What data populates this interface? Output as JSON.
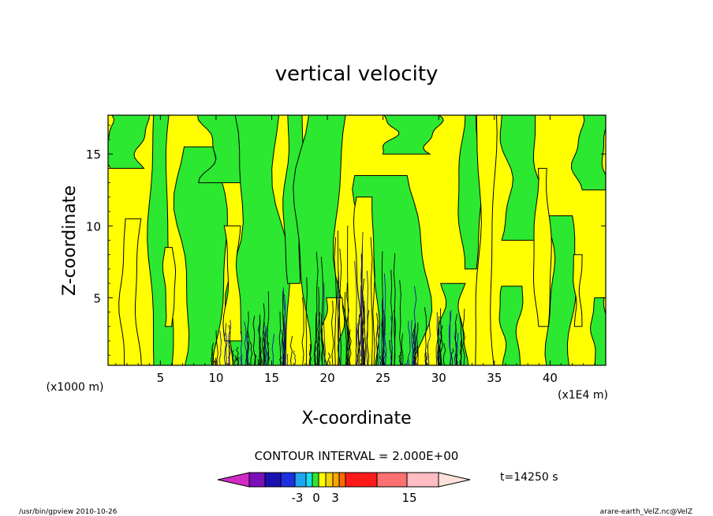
{
  "chart_data": {
    "type": "heatmap",
    "title": "vertical velocity",
    "xlabel": "X-coordinate",
    "ylabel": "Z-coordinate",
    "x_units_left": "(x1000 m)",
    "x_units_right": "(x1E4 m)",
    "x_ticks": [
      "5",
      "10",
      "15",
      "20",
      "25",
      "30",
      "35",
      "40"
    ],
    "x_tick_values": [
      5,
      10,
      15,
      20,
      25,
      30,
      35,
      40
    ],
    "y_ticks": [
      "5",
      "10",
      "15"
    ],
    "y_tick_values": [
      5,
      10,
      15
    ],
    "xlim": [
      0.3,
      45
    ],
    "ylim": [
      0.3,
      17.7
    ],
    "contour_interval": "CONTOUR INTERVAL = 2.000E+00",
    "time_label": "t=14250 s",
    "colorbar": {
      "colors": [
        "#d02bc6",
        "#7b10b8",
        "#1a12b0",
        "#1d2fe0",
        "#1fa5f2",
        "#17e0f0",
        "#2ce830",
        "#ffff00",
        "#f5d10c",
        "#f7a800",
        "#ff6a00",
        "#ff1a1a",
        "#ff7070",
        "#ffbcc2",
        "#fde0da"
      ],
      "tick_labels": [
        "-3",
        "0",
        "3",
        "15"
      ],
      "tick_values": [
        -3,
        0,
        3,
        15
      ]
    },
    "colors": {
      "positive_fill": "#ffff00",
      "negative_fill": "#2ce830",
      "contour_line": "#000000",
      "updraft_core": "#1a1a9a"
    },
    "green_regions": [
      {
        "xc": 1.8,
        "z0": 14.0,
        "z1": 17.7,
        "w": 3.2
      },
      {
        "xc": 5.0,
        "z0": 0.3,
        "z1": 17.7,
        "w": 1.6
      },
      {
        "xc": 8.7,
        "z0": 0.3,
        "z1": 15.5,
        "w": 3.4
      },
      {
        "xc": 11.3,
        "z0": 13.0,
        "z1": 17.7,
        "w": 4.0
      },
      {
        "xc": 13.8,
        "z0": 0.3,
        "z1": 17.7,
        "w": 4.2
      },
      {
        "xc": 17.0,
        "z0": 6.0,
        "z1": 17.7,
        "w": 1.4
      },
      {
        "xc": 19.5,
        "z0": 0.3,
        "z1": 17.7,
        "w": 3.6
      },
      {
        "xc": 25.8,
        "z0": 0.3,
        "z1": 13.5,
        "w": 5.0
      },
      {
        "xc": 27.5,
        "z0": 15.0,
        "z1": 17.7,
        "w": 4.0
      },
      {
        "xc": 31.2,
        "z0": 0.3,
        "z1": 6.0,
        "w": 2.0
      },
      {
        "xc": 32.8,
        "z0": 7.0,
        "z1": 17.7,
        "w": 1.6
      },
      {
        "xc": 36.5,
        "z0": 0.3,
        "z1": 5.8,
        "w": 1.6
      },
      {
        "xc": 37.5,
        "z0": 9.0,
        "z1": 17.7,
        "w": 3.0
      },
      {
        "xc": 41.0,
        "z0": 0.3,
        "z1": 10.7,
        "w": 2.0
      },
      {
        "xc": 43.8,
        "z0": 12.5,
        "z1": 17.7,
        "w": 2.6
      },
      {
        "xc": 44.5,
        "z0": 0.3,
        "z1": 5.0,
        "w": 1.2
      }
    ],
    "yellow_regions": [
      {
        "xc": 2.3,
        "z0": 0.3,
        "z1": 10.5,
        "w": 1.4
      },
      {
        "xc": 5.8,
        "z0": 3.0,
        "z1": 8.5,
        "w": 0.8
      },
      {
        "xc": 11.5,
        "z0": 2.0,
        "z1": 10.0,
        "w": 1.2
      },
      {
        "xc": 20.5,
        "z0": 0.3,
        "z1": 5.0,
        "w": 1.5
      },
      {
        "xc": 23.5,
        "z0": 0.3,
        "z1": 12.0,
        "w": 1.6
      },
      {
        "xc": 34.2,
        "z0": 0.3,
        "z1": 17.7,
        "w": 1.4
      },
      {
        "xc": 39.3,
        "z0": 3.0,
        "z1": 14.0,
        "w": 1.2
      },
      {
        "xc": 42.5,
        "z0": 3.0,
        "z1": 8.0,
        "w": 0.6
      }
    ],
    "noise_band": [
      9.5,
      32.5
    ]
  },
  "footer": {
    "left": "/usr/bin/gpview   2010-10-26",
    "right": "arare-earth_VelZ.nc@VelZ"
  }
}
